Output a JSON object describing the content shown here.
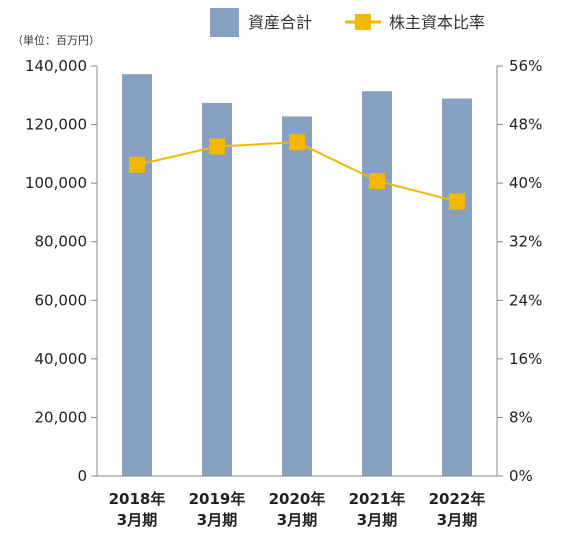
{
  "chart_data": {
    "type": "bar",
    "unit_label": "（単位：百万円）",
    "categories": [
      [
        "2018年",
        "3月期"
      ],
      [
        "2019年",
        "3月期"
      ],
      [
        "2020年",
        "3月期"
      ],
      [
        "2021年",
        "3月期"
      ],
      [
        "2022年",
        "3月期"
      ]
    ],
    "series": [
      {
        "name": "資産合計",
        "type": "bar",
        "axis": "left",
        "color": "#87a2c0",
        "values": [
          137200,
          127400,
          122800,
          131400,
          128900
        ]
      },
      {
        "name": "株主資本比率",
        "type": "line",
        "axis": "right",
        "color": "#f5b800",
        "values": [
          42.5,
          45.0,
          45.6,
          40.3,
          37.5
        ]
      }
    ],
    "y_left": {
      "min": 0,
      "max": 140000,
      "ticks": [
        0,
        20000,
        40000,
        60000,
        80000,
        100000,
        120000,
        140000
      ],
      "tick_labels": [
        "0",
        "20,000",
        "40,000",
        "60,000",
        "80,000",
        "100,000",
        "120,000",
        "140,000"
      ]
    },
    "y_right": {
      "min": 0,
      "max": 56,
      "ticks": [
        0,
        8,
        16,
        24,
        32,
        40,
        48,
        56
      ],
      "tick_labels": [
        "0%",
        "8%",
        "16%",
        "24%",
        "32%",
        "40%",
        "48%",
        "56%"
      ]
    },
    "legend_position": "top-right",
    "grid": false
  }
}
